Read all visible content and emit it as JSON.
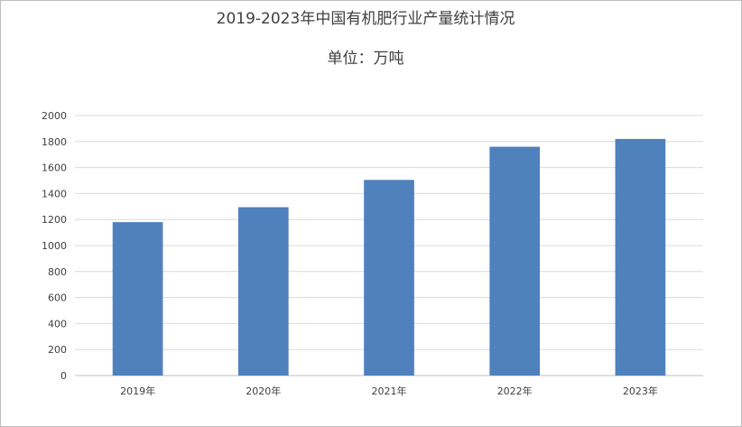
{
  "chart_data": {
    "type": "bar",
    "title": "2019-2023年中国有机肥行业产量统计情况",
    "subtitle": "单位：万吨",
    "categories": [
      "2019年",
      "2020年",
      "2021年",
      "2022年",
      "2023年"
    ],
    "series": [
      {
        "values": [
          1180,
          1295,
          1505,
          1760,
          1820
        ]
      }
    ],
    "ylim": [
      0,
      2000
    ],
    "yticks": [
      "0",
      "200",
      "400",
      "600",
      "800",
      "1000",
      "1200",
      "1400",
      "1600",
      "1800",
      "2000"
    ],
    "grid": true,
    "legend": "none",
    "colors": {
      "bar": "#4f81bd",
      "grid": "#d9d9d9",
      "axis": "#bfbfbf"
    }
  }
}
